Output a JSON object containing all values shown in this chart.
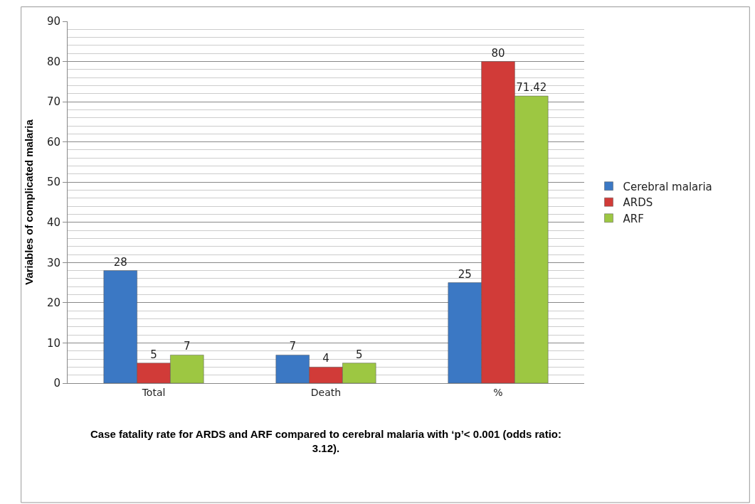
{
  "chart_data": {
    "type": "bar",
    "ylabel": "Variables of complicated malaria",
    "categories": [
      "Total",
      "Death",
      "%"
    ],
    "series": [
      {
        "name": "Cerebral malaria",
        "color": "#3b78c4",
        "values": [
          28,
          7,
          25
        ]
      },
      {
        "name": "ARDS",
        "color": "#d13b38",
        "values": [
          5,
          4,
          80
        ]
      },
      {
        "name": "ARF",
        "color": "#9dc742",
        "values": [
          7,
          5,
          71.42
        ]
      }
    ],
    "ylim": [
      0,
      90
    ],
    "yticks": [
      0,
      10,
      20,
      30,
      40,
      50,
      60,
      70,
      80,
      90
    ],
    "grid": "y",
    "legend": "right",
    "data_labels": true,
    "annotations": [
      "Case fatality rate for ARDS and ARF compared to cerebral malaria with ‘p’< 0.001 (odds ratio: 3.12)."
    ]
  }
}
